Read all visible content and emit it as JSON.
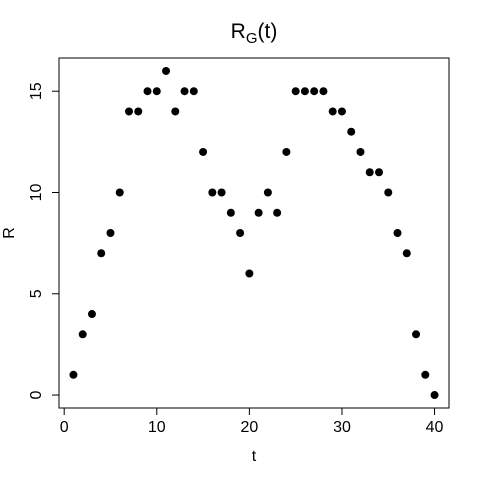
{
  "chart_data": {
    "type": "scatter",
    "title": {
      "base": "R",
      "subscript": "G",
      "tail": "(t)"
    },
    "xlabel": "t",
    "ylabel": "R",
    "x": [
      1,
      2,
      3,
      4,
      5,
      6,
      7,
      8,
      9,
      10,
      11,
      12,
      13,
      14,
      15,
      16,
      17,
      18,
      19,
      20,
      21,
      22,
      23,
      24,
      25,
      26,
      27,
      28,
      29,
      30,
      31,
      32,
      33,
      34,
      35,
      36,
      37,
      38,
      39,
      40
    ],
    "values": [
      1,
      3,
      4,
      7,
      8,
      10,
      14,
      14,
      15,
      15,
      16,
      14,
      15,
      15,
      12,
      10,
      10,
      9,
      8,
      6,
      9,
      10,
      9,
      12,
      15,
      15,
      15,
      15,
      14,
      14,
      13,
      12,
      11,
      11,
      10,
      8,
      7,
      3,
      1,
      0
    ],
    "color": "#000000",
    "xlim": [
      -0.56,
      41.56
    ],
    "ylim": [
      -0.64,
      16.64
    ],
    "xticks": [
      0,
      10,
      20,
      30,
      40
    ],
    "yticks": [
      0,
      5,
      10,
      15
    ]
  }
}
